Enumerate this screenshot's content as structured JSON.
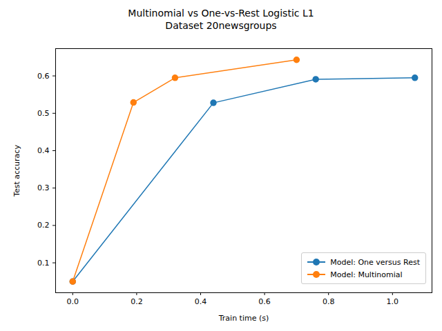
{
  "chart_data": {
    "type": "line",
    "title": "Multinomial vs One-vs-Rest Logistic L1",
    "subtitle": "Dataset 20newsgroups",
    "x_label": "Train time (s)",
    "y_label": "Test accuracy",
    "series": [
      {
        "name": "Model: One versus Rest",
        "color": "#1f77b4",
        "marker": "circle",
        "x": [
          0.0,
          0.44,
          0.76,
          1.07
        ],
        "values": [
          0.05,
          0.528,
          0.591,
          0.595
        ]
      },
      {
        "name": "Model: Multinomial",
        "color": "#ff7f0e",
        "marker": "circle",
        "x": [
          0.0,
          0.19,
          0.32,
          0.7
        ],
        "values": [
          0.05,
          0.529,
          0.595,
          0.643
        ]
      }
    ],
    "xlim": [
      -0.0535,
      1.1235
    ],
    "xticks": [
      {
        "value": 0.0,
        "label": "0.0"
      },
      0.2,
      0.4,
      0.6,
      0.8,
      {
        "value": 1.0,
        "label": "1.0"
      }
    ],
    "ylim": [
      0.02,
      0.673
    ],
    "yticks": [
      0.1,
      0.2,
      0.3,
      0.4,
      0.5,
      0.6
    ],
    "grid": false,
    "legend": "lower right"
  }
}
